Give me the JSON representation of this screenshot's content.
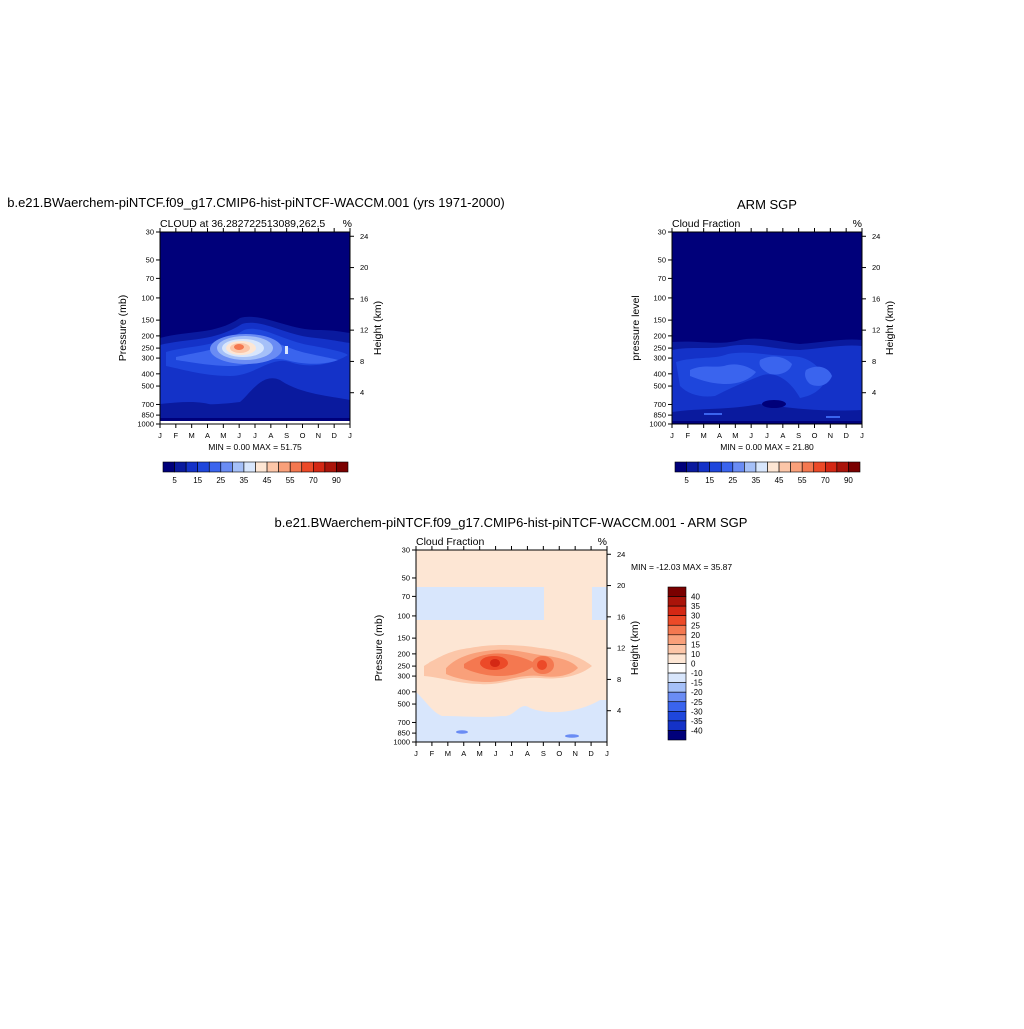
{
  "months": [
    "J",
    "F",
    "M",
    "A",
    "M",
    "J",
    "J",
    "A",
    "S",
    "O",
    "N",
    "D",
    "J"
  ],
  "pressure_ticks": [
    30,
    50,
    70,
    100,
    150,
    200,
    250,
    300,
    400,
    500,
    700,
    850,
    1000
  ],
  "height_ticks": [
    4,
    8,
    12,
    16,
    20,
    24
  ],
  "panel1": {
    "suptitle": "b.e21.BWaerchem-piNTCF.f09_g17.CMIP6-hist-piNTCF-WACCM.001 (yrs 1971-2000)",
    "left_title": "CLOUD at 36.282722513089,262.5",
    "units": "%",
    "ylabel": "Pressure (mb)",
    "ylabel_right": "Height (km)",
    "stats": "MIN =   0.00 MAX =  51.75"
  },
  "panel2": {
    "suptitle": "ARM SGP",
    "left_title": "Cloud Fraction",
    "units": "%",
    "ylabel": "pressure level",
    "ylabel_right": "Height (km)",
    "stats": "MIN =   0.00 MAX =  21.80"
  },
  "panel3": {
    "suptitle": "b.e21.BWaerchem-piNTCF.f09_g17.CMIP6-hist-piNTCF-WACCM.001 - ARM SGP",
    "left_title": "Cloud Fraction",
    "units": "%",
    "ylabel": "Pressure (mb)",
    "ylabel_right": "Height (km)",
    "stats": "MIN = -12.03 MAX =  35.87"
  },
  "colorbar_abs": {
    "labels": [
      "5",
      "15",
      "25",
      "35",
      "45",
      "55",
      "70",
      "90"
    ],
    "colors": [
      "#00007a",
      "#0a1a9e",
      "#1432c8",
      "#1e46dc",
      "#3a64ee",
      "#6a8cf4",
      "#a5c0f8",
      "#d8e6fc",
      "#fde6d4",
      "#fcc6a8",
      "#f9a07a",
      "#f47850",
      "#ec4a28",
      "#d42814",
      "#aa140a",
      "#7a0000"
    ]
  },
  "colorbar_diff": {
    "labels": [
      "40",
      "35",
      "30",
      "25",
      "20",
      "15",
      "10",
      "0",
      "-10",
      "-15",
      "-20",
      "-25",
      "-30",
      "-35",
      "-40"
    ],
    "colors": [
      "#7a0000",
      "#aa140a",
      "#d42814",
      "#ec4a28",
      "#f47850",
      "#f9a07a",
      "#fcc6a8",
      "#fde6d4",
      "#ffffff",
      "#d8e6fc",
      "#a5c0f8",
      "#6a8cf4",
      "#3a64ee",
      "#1e46dc",
      "#1432c8",
      "#00007a"
    ]
  },
  "chart_data": [
    {
      "type": "heatmap",
      "title": "CLOUD at 36.282722513089,262.5",
      "xlabel": "",
      "ylabel": "Pressure (mb)",
      "units": "%",
      "x": [
        "J",
        "F",
        "M",
        "A",
        "M",
        "J",
        "J",
        "A",
        "S",
        "O",
        "N",
        "D",
        "J"
      ],
      "y_levels_mb": [
        30,
        50,
        70,
        100,
        150,
        200,
        250,
        300,
        400,
        500,
        700,
        850,
        1000
      ],
      "min": 0.0,
      "max": 51.75,
      "features": [
        {
          "desc": "upper troposphere cloud maximum",
          "month": "Jun",
          "pressure_mb": 210,
          "value": 50
        },
        {
          "desc": "secondary maximum",
          "month": "Sep",
          "pressure_mb": 230,
          "value": 30
        }
      ]
    },
    {
      "type": "heatmap",
      "title": "Cloud Fraction",
      "ylabel": "pressure level",
      "units": "%",
      "x": [
        "J",
        "F",
        "M",
        "A",
        "M",
        "J",
        "J",
        "A",
        "S",
        "O",
        "N",
        "D",
        "J"
      ],
      "y_levels_mb": [
        30,
        50,
        70,
        100,
        150,
        200,
        250,
        300,
        400,
        500,
        700,
        850,
        1000
      ],
      "min": 0.0,
      "max": 21.8
    },
    {
      "type": "heatmap",
      "title": "Cloud Fraction",
      "ylabel": "Pressure (mb)",
      "units": "%",
      "x": [
        "J",
        "F",
        "M",
        "A",
        "M",
        "J",
        "J",
        "A",
        "S",
        "O",
        "N",
        "D",
        "J"
      ],
      "y_levels_mb": [
        30,
        50,
        70,
        100,
        150,
        200,
        250,
        300,
        400,
        500,
        700,
        850,
        1000
      ],
      "min": -12.03,
      "max": 35.87,
      "features": [
        {
          "desc": "difference maximum",
          "month": "Jun",
          "pressure_mb": 210,
          "value": 35
        },
        {
          "desc": "secondary difference maximum",
          "month": "Sep",
          "pressure_mb": 210,
          "value": 30
        }
      ]
    }
  ]
}
